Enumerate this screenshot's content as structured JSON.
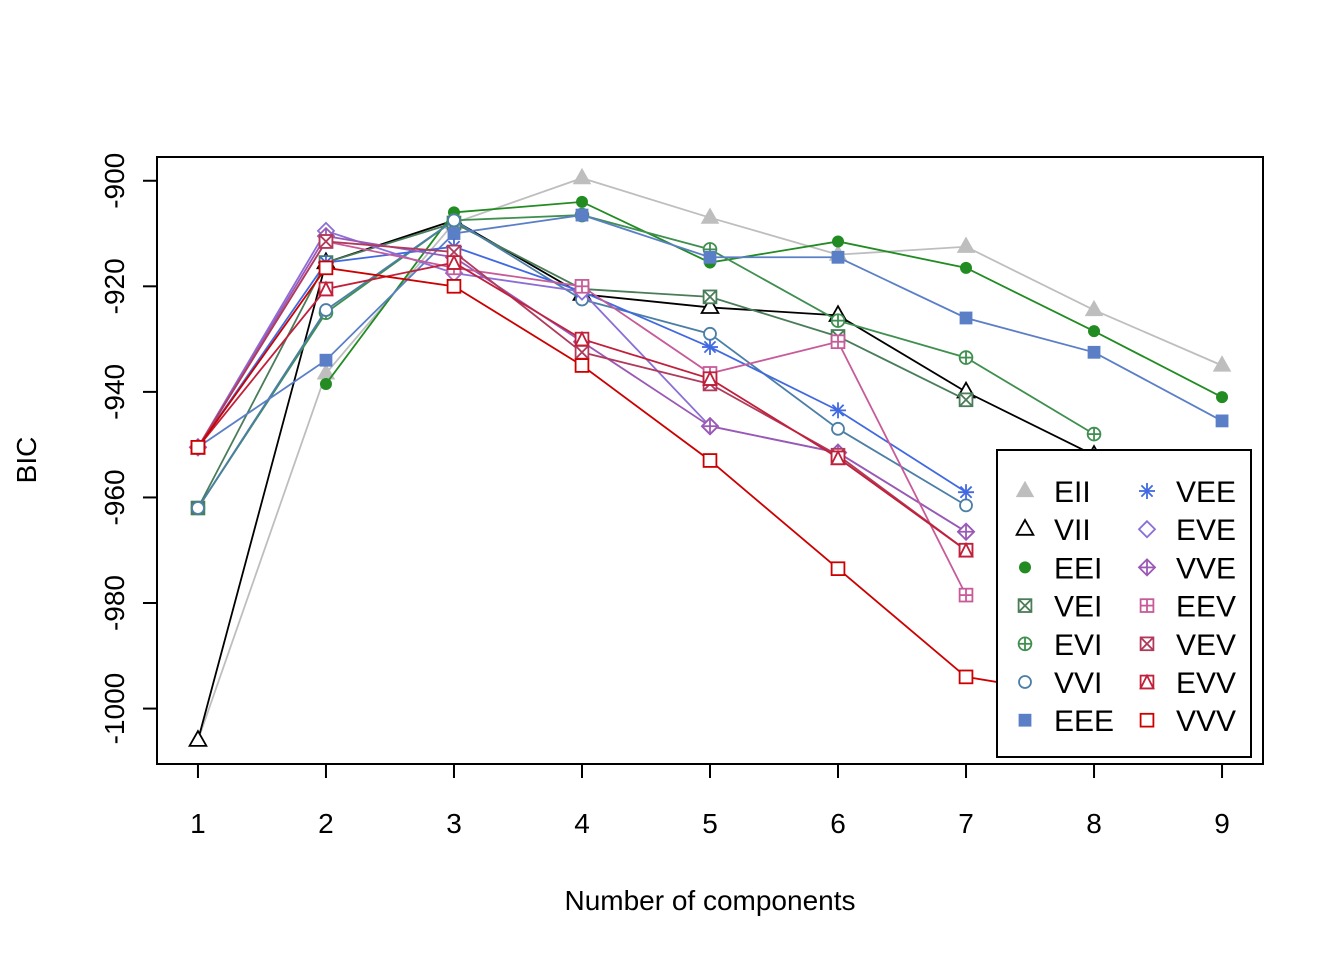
{
  "chart_data": {
    "type": "line",
    "title": "",
    "xlabel": "Number of components",
    "ylabel": "BIC",
    "x": [
      1,
      2,
      3,
      4,
      5,
      6,
      7,
      8,
      9
    ],
    "xlim": [
      0.68,
      9.32
    ],
    "ylim": [
      -1010.5,
      -895.5
    ],
    "xticks": [
      1,
      2,
      3,
      4,
      5,
      6,
      7,
      8,
      9
    ],
    "yticks": [
      -1000,
      -980,
      -960,
      -940,
      -920,
      -900
    ],
    "grid": false,
    "legend_position": "bottom-right",
    "series": [
      {
        "name": "EII",
        "color": "#BEBEBE",
        "marker": "filled-triangle",
        "values": [
          -1006,
          -936.5,
          -908,
          -899.5,
          -907,
          -914,
          -912.5,
          -924.5,
          -935
        ]
      },
      {
        "name": "VII",
        "color": "#000000",
        "marker": "open-triangle",
        "values": [
          -1006,
          -915.5,
          -907.5,
          -921.5,
          -924,
          -925.5,
          -940,
          -952,
          null
        ]
      },
      {
        "name": "EEI",
        "color": "#228B22",
        "marker": "filled-circle",
        "values": [
          null,
          -938.5,
          -906,
          -904,
          -915.5,
          -911.5,
          -916.5,
          -928.5,
          -941
        ]
      },
      {
        "name": "VEI",
        "color": "#4A7C59",
        "marker": "boxed-x",
        "values": [
          -962,
          -915.5,
          -908,
          -920.5,
          -922,
          -929.5,
          -941.5,
          null,
          null
        ]
      },
      {
        "name": "EVI",
        "color": "#3F8F4F",
        "marker": "circle-plus",
        "values": [
          -962,
          -925,
          -907.5,
          -906.5,
          -913,
          -926.5,
          -933.5,
          -948,
          null
        ]
      },
      {
        "name": "VVI",
        "color": "#4B7FA6",
        "marker": "open-circle",
        "values": [
          -962,
          -924.5,
          -907.5,
          -922.5,
          -929,
          -947,
          -961.5,
          null,
          null
        ]
      },
      {
        "name": "EEE",
        "color": "#5B7FC7",
        "marker": "filled-square",
        "values": [
          -950.5,
          -934,
          -910,
          -906.5,
          -914.5,
          -914.5,
          -926,
          -932.5,
          -945.5
        ]
      },
      {
        "name": "VEE",
        "color": "#4169E1",
        "marker": "asterisk",
        "values": [
          -950.5,
          -915.5,
          -912.5,
          -921,
          -931.5,
          -943.5,
          -959,
          null,
          null
        ]
      },
      {
        "name": "EVE",
        "color": "#8B6FD6",
        "marker": "open-diamond",
        "values": [
          -950.5,
          -909.5,
          -917.5,
          -921,
          -946.5,
          -951.5,
          -966.5,
          null,
          null
        ]
      },
      {
        "name": "VVE",
        "color": "#9B59B6",
        "marker": "diamond-plus",
        "values": [
          -950.5,
          -910.5,
          -914.5,
          -930.5,
          -946.5,
          -951.5,
          -966.5,
          null,
          null
        ]
      },
      {
        "name": "EEV",
        "color": "#C75B9A",
        "marker": "boxed-plus",
        "values": [
          -950.5,
          -911.5,
          -916.5,
          -920,
          -936.5,
          -930.5,
          -978.5,
          null,
          null
        ]
      },
      {
        "name": "VEV",
        "color": "#B03A5B",
        "marker": "boxed-x-square",
        "values": [
          -950.5,
          -911.5,
          -913.5,
          -932.5,
          -938.5,
          -952,
          -970,
          null,
          null
        ]
      },
      {
        "name": "EVV",
        "color": "#C0203A",
        "marker": "triangle-in-square",
        "values": [
          -950.5,
          -920.5,
          -915.5,
          -930,
          -937.5,
          -952.5,
          -970,
          null,
          null
        ]
      },
      {
        "name": "VVV",
        "color": "#CD0000",
        "marker": "open-square",
        "values": [
          -950.5,
          -916.5,
          -920,
          -935,
          -953,
          -973.5,
          -994,
          -998,
          null
        ]
      }
    ]
  }
}
